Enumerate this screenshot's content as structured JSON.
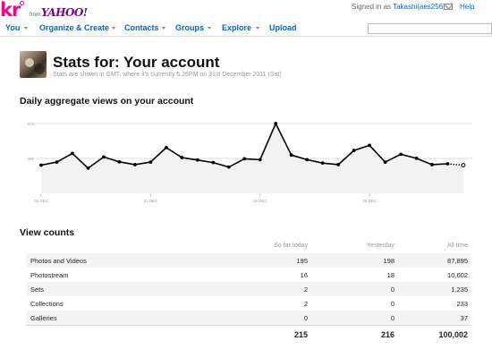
{
  "header": {
    "logo_text": "kr",
    "logo_from": "from",
    "logo_yahoo": "YAHOO!",
    "signed_in_prefix": "Signed in as",
    "username": "Takashi(aes256)",
    "help": "Help"
  },
  "nav": {
    "items": [
      {
        "label": "You"
      },
      {
        "label": "Organize & Create"
      },
      {
        "label": "Contacts"
      },
      {
        "label": "Groups"
      },
      {
        "label": "Explore"
      },
      {
        "label": "Upload"
      }
    ]
  },
  "page": {
    "title": "Stats for: Your account",
    "subtitle": "Stats are shown in GMT, where it's currently 6.26PM on 31st December 2011 (Sat)"
  },
  "chart_section": {
    "title": "Daily aggregate views on your account"
  },
  "chart_data": {
    "type": "line",
    "title": "Daily aggregate views on your account",
    "xlabel": "",
    "ylabel": "",
    "ylim": [
      0,
      572
    ],
    "y_ticks": [
      572,
      286
    ],
    "x_tick_labels": [
      "04 DEC",
      "11 DEC",
      "18 DEC",
      "25 DEC"
    ],
    "x_tick_index": [
      0,
      7,
      14,
      21
    ],
    "grid": true,
    "series": [
      {
        "values": [
          231,
          256,
          327,
          206,
          298,
          258,
          235,
          256,
          375,
          293,
          273,
          252,
          215,
          283,
          275,
          572,
          313,
          276,
          248,
          235,
          351,
          393,
          256,
          320,
          287,
          235,
          242,
          231
        ]
      }
    ],
    "colors": {
      "line": "#000000",
      "fill": "#f2f2f2",
      "grid": "#dddddd"
    }
  },
  "view_counts": {
    "title": "View counts",
    "headers": [
      "",
      "So far today",
      "Yesterday",
      "All time"
    ],
    "rows": [
      [
        "Photos and Videos",
        "195",
        "198",
        "87,895"
      ],
      [
        "Photostream",
        "16",
        "18",
        "10,602"
      ],
      [
        "Sets",
        "2",
        "0",
        "1,235"
      ],
      [
        "Collections",
        "2",
        "0",
        "233"
      ],
      [
        "Galleries",
        "0",
        "0",
        "37"
      ]
    ],
    "totals": [
      "",
      "215",
      "216",
      "100,002"
    ]
  }
}
